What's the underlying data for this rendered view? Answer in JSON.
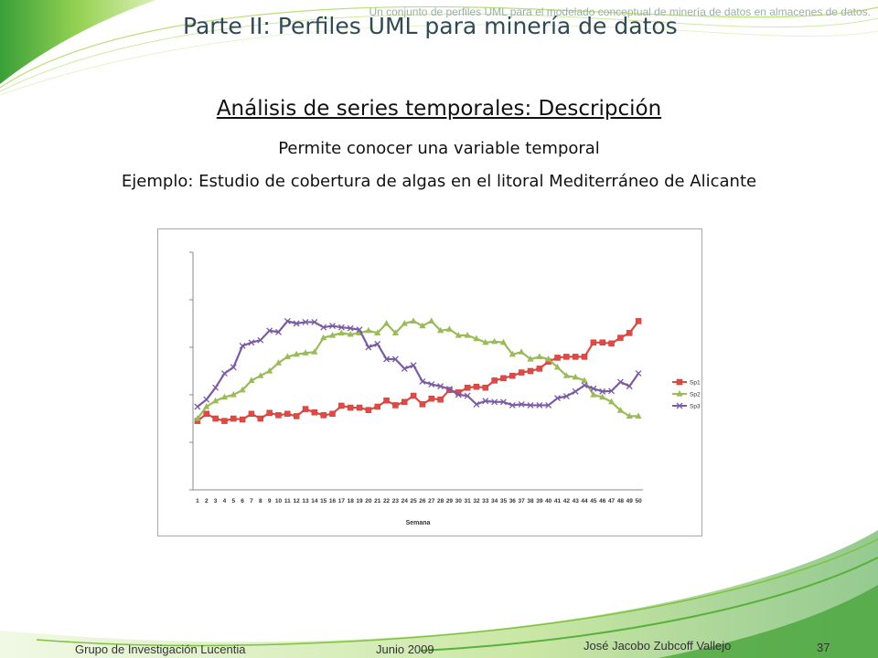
{
  "header_note": "Un conjunto de perfiles UML para el modelado conceptual de minería de datos en almacenes de datos.",
  "title": "Parte II: Perfiles UML para minería de datos",
  "heading": "Análisis de series temporales: Descripción",
  "line1": "Permite conocer una variable temporal",
  "line2": "Ejemplo: Estudio de cobertura de algas en el litoral Mediterráneo de Alicante",
  "footer": {
    "group": "Grupo de Investigación Lucentia",
    "date": "Junio 2009",
    "author": "José Jacobo Zubcoff Vallejo",
    "page": "37"
  },
  "colors": {
    "accent_green": "#7ac143",
    "sp1": "#e04a45",
    "sp2": "#9bbb59",
    "sp3": "#7b5ba5"
  },
  "chart_data": {
    "type": "line",
    "xlabel": "Semana",
    "ylabel": "",
    "grid": false,
    "legend_position": "right",
    "y_tick_labels_shown": false,
    "ylim": [
      0,
      5
    ],
    "x": [
      1,
      2,
      3,
      4,
      5,
      6,
      7,
      8,
      9,
      10,
      11,
      12,
      13,
      14,
      15,
      16,
      17,
      18,
      19,
      20,
      21,
      22,
      23,
      24,
      25,
      26,
      27,
      28,
      29,
      30,
      31,
      32,
      33,
      34,
      35,
      36,
      37,
      38,
      39,
      40,
      41,
      42,
      43,
      44,
      45,
      46,
      47,
      48,
      49,
      50
    ],
    "series": [
      {
        "name": "Sp1",
        "marker": "square",
        "color": "#e04a45",
        "values": [
          1.45,
          1.6,
          1.5,
          1.45,
          1.5,
          1.48,
          1.6,
          1.5,
          1.62,
          1.57,
          1.6,
          1.55,
          1.7,
          1.63,
          1.57,
          1.6,
          1.77,
          1.73,
          1.73,
          1.68,
          1.75,
          1.88,
          1.78,
          1.85,
          1.98,
          1.8,
          1.92,
          1.9,
          2.1,
          2.05,
          2.15,
          2.17,
          2.15,
          2.3,
          2.35,
          2.4,
          2.47,
          2.5,
          2.55,
          2.7,
          2.78,
          2.8,
          2.8,
          2.8,
          3.1,
          3.1,
          3.08,
          3.2,
          3.3,
          3.55
        ]
      },
      {
        "name": "Sp2",
        "marker": "triangle",
        "color": "#9bbb59",
        "values": [
          1.5,
          1.75,
          1.87,
          1.95,
          2.0,
          2.1,
          2.3,
          2.4,
          2.5,
          2.67,
          2.8,
          2.85,
          2.88,
          2.9,
          3.2,
          3.25,
          3.3,
          3.27,
          3.3,
          3.35,
          3.3,
          3.5,
          3.3,
          3.5,
          3.55,
          3.45,
          3.55,
          3.35,
          3.38,
          3.25,
          3.25,
          3.18,
          3.1,
          3.12,
          3.1,
          2.85,
          2.9,
          2.75,
          2.8,
          2.75,
          2.58,
          2.4,
          2.37,
          2.3,
          2.0,
          1.95,
          1.85,
          1.67,
          1.55,
          1.55
        ]
      },
      {
        "name": "Sp3",
        "marker": "x",
        "color": "#7b5ba5",
        "values": [
          1.75,
          1.9,
          2.15,
          2.45,
          2.58,
          3.03,
          3.1,
          3.15,
          3.35,
          3.32,
          3.55,
          3.5,
          3.53,
          3.53,
          3.42,
          3.45,
          3.42,
          3.4,
          3.37,
          3.0,
          3.07,
          2.75,
          2.75,
          2.55,
          2.62,
          2.28,
          2.22,
          2.18,
          2.12,
          2.0,
          1.98,
          1.8,
          1.87,
          1.85,
          1.85,
          1.78,
          1.8,
          1.78,
          1.78,
          1.78,
          1.93,
          1.97,
          2.07,
          2.2,
          2.13,
          2.07,
          2.08,
          2.27,
          2.18,
          2.45
        ]
      }
    ]
  }
}
